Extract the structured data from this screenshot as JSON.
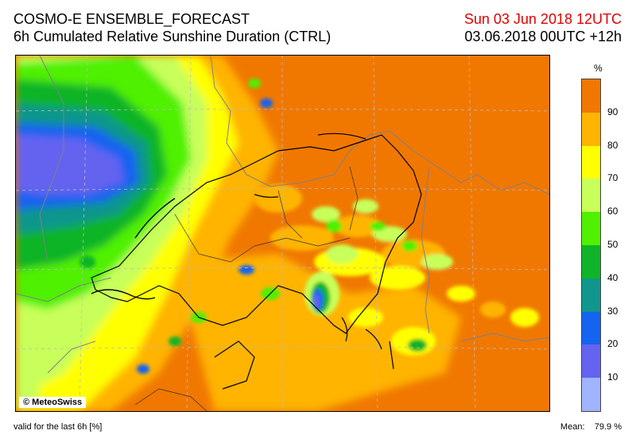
{
  "header": {
    "title_line1": "COSMO-E ENSEMBLE_FORECAST",
    "title_line2": "6h Cumulated Relative Sunshine Duration (CTRL)",
    "valid_date": "Sun 03 Jun 2018 12UTC",
    "run_info": "03.06.2018 00UTC +12h",
    "valid_date_color": "#e00000"
  },
  "map": {
    "copyright": "© MeteoSwiss",
    "dominant_color": "#f07800"
  },
  "legend": {
    "unit": "%",
    "ticks": [
      "90",
      "80",
      "70",
      "60",
      "50",
      "40",
      "30",
      "20",
      "10"
    ],
    "classes": [
      {
        "range": "90-100",
        "color": "#f07800"
      },
      {
        "range": "80-90",
        "color": "#ffb400"
      },
      {
        "range": "70-80",
        "color": "#ffff00"
      },
      {
        "range": "60-70",
        "color": "#c8ff5a"
      },
      {
        "range": "50-60",
        "color": "#50f000"
      },
      {
        "range": "40-50",
        "color": "#10b428"
      },
      {
        "range": "30-40",
        "color": "#10968c"
      },
      {
        "range": "20-30",
        "color": "#1464f0"
      },
      {
        "range": "10-20",
        "color": "#6464f0"
      },
      {
        "range": "0-10",
        "color": "#a0b4ff"
      }
    ]
  },
  "footer": {
    "valid_for": "valid for the last 6h [%]",
    "mean_label": "Mean:",
    "mean_value": "79.9 %"
  }
}
